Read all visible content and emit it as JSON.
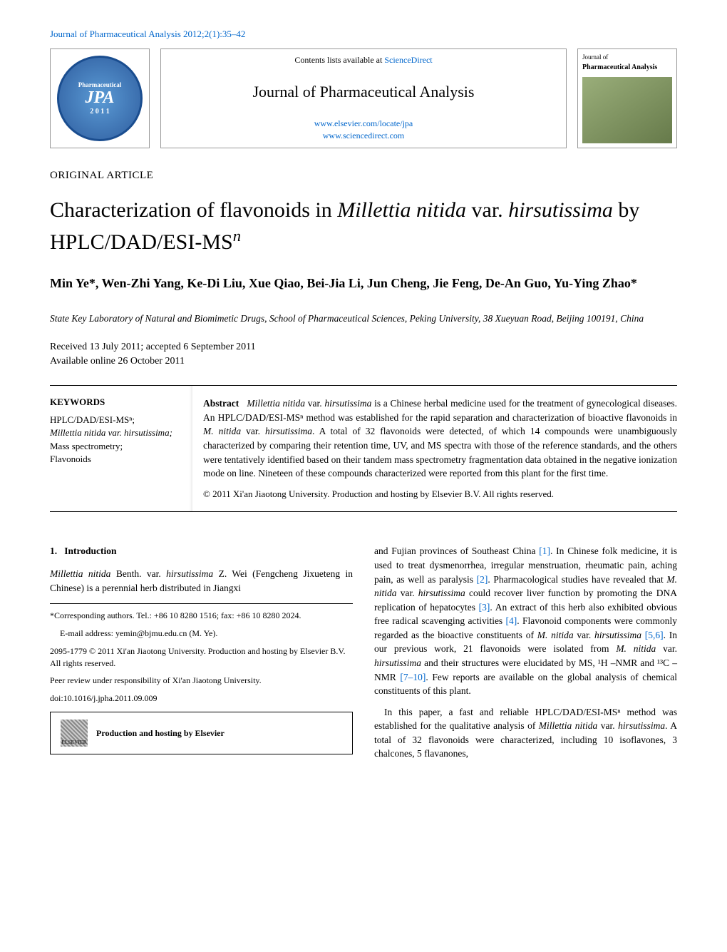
{
  "header": {
    "citation": "Journal of Pharmaceutical Analysis 2012;2(1):35–42"
  },
  "masthead": {
    "logo_text_top": "Pharmaceutical",
    "logo_text_center": "JPA",
    "logo_text_year": "2 0 1 1",
    "contents_prefix": "Contents lists available at ",
    "contents_link": "ScienceDirect",
    "journal_title": "Journal of Pharmaceutical Analysis",
    "link1": "www.elsevier.com/locate/jpa",
    "link2": "www.sciencedirect.com",
    "cover_line1": "Journal of",
    "cover_line2": "Pharmaceutical Analysis"
  },
  "article": {
    "type": "ORIGINAL ARTICLE",
    "title_part1": "Characterization of flavonoids in ",
    "title_italic1": "Millettia nitida",
    "title_part2": " var. ",
    "title_italic2": "hirsutissima",
    "title_part3": " by HPLC/DAD/ESI-MS",
    "title_sup": "n",
    "authors": "Min Ye*, Wen-Zhi Yang, Ke-Di Liu, Xue Qiao, Bei-Jia Li, Jun Cheng, Jie Feng, De-An Guo, Yu-Ying Zhao*",
    "affiliation": "State Key Laboratory of Natural and Biomimetic Drugs, School of Pharmaceutical Sciences, Peking University, 38 Xueyuan Road, Beijing 100191, China",
    "received": "Received 13 July 2011; accepted 6 September 2011",
    "available": "Available online 26 October 2011"
  },
  "keywords": {
    "heading": "KEYWORDS",
    "items": [
      "HPLC/DAD/ESI-MSⁿ;",
      "Millettia nitida var. hirsutissima;",
      "Mass spectrometry;",
      "Flavonoids"
    ]
  },
  "abstract": {
    "heading": "Abstract",
    "text_p1a": "Millettia nitida",
    "text_p1b": " var. ",
    "text_p1c": "hirsutissima",
    "text_p1d": " is a Chinese herbal medicine used for the treatment of gynecological diseases. An HPLC/DAD/ESI-MSⁿ method was established for the rapid separation and characterization of bioactive flavonoids in ",
    "text_p1e": "M. nitida",
    "text_p1f": " var. ",
    "text_p1g": "hirsutissima",
    "text_p1h": ". A total of 32 flavonoids were detected, of which 14 compounds were unambiguously characterized by comparing their retention time, UV, and MS spectra with those of the reference standards, and the others were tentatively identified based on their tandem mass spectrometry fragmentation data obtained in the negative ionization mode on line. Nineteen of these compounds characterized were reported from this plant for the first time.",
    "copyright": "© 2011 Xi'an Jiaotong University. Production and hosting by Elsevier B.V. All rights reserved."
  },
  "body": {
    "sec1_num": "1.",
    "sec1_title": "Introduction",
    "p1a": "Millettia nitida",
    "p1b": " Benth. var. ",
    "p1c": "hirsutissima",
    "p1d": " Z. Wei (Fengcheng Jixueteng in Chinese) is a perennial herb distributed in Jiangxi",
    "p2a": "and Fujian provinces of Southeast China ",
    "ref1": "[1]",
    "p2b": ". In Chinese folk medicine, it is used to treat dysmenorrhea, irregular menstruation, rheumatic pain, aching pain, as well as paralysis ",
    "ref2": "[2]",
    "p2c": ". Pharmacological studies have revealed that ",
    "p2d": "M. nitida",
    "p2e": " var. ",
    "p2f": "hirsutissima",
    "p2g": " could recover liver function by promoting the DNA replication of hepatocytes ",
    "ref3": "[3]",
    "p2h": ". An extract of this herb also exhibited obvious free radical scavenging activities ",
    "ref4": "[4]",
    "p2i": ". Flavonoid components were commonly regarded as the bioactive constituents of ",
    "p2j": "M. nitida",
    "p2k": " var. ",
    "p2l": "hirsutissima",
    "p2m": " ",
    "ref56": "[5,6]",
    "p2n": ". In our previous work, 21 flavonoids were isolated from ",
    "p2o": "M. nitida",
    "p2p": " var. ",
    "p2q": "hirsutissima",
    "p2r": " and their structures were elucidated by MS, ¹H –NMR and ¹³C –NMR ",
    "ref710": "[7–10]",
    "p2s": ". Few reports are available on the global analysis of chemical constituents of this plant.",
    "p3a": "In this paper, a fast and reliable HPLC/DAD/ESI-MSⁿ method was established for the qualitative analysis of ",
    "p3b": "Millettia nitida",
    "p3c": " var. ",
    "p3d": "hirsutissima",
    "p3e": ". A total of 32 flavonoids were characterized, including 10 isoflavones, 3 chalcones, 5 flavanones,"
  },
  "footnotes": {
    "corr": "*Corresponding authors. Tel.: +86 10 8280 1516; fax: +86 10 8280 2024.",
    "email_label": "E-mail address: ",
    "email": "yemin@bjmu.edu.cn (M. Ye).",
    "issn": "2095-1779 © 2011 Xi'an Jiaotong University. Production and hosting by Elsevier B.V. All rights reserved.",
    "peer": "Peer review under responsibility of Xi'an Jiaotong University.",
    "doi": "doi:10.1016/j.jpha.2011.09.009",
    "hosting": "Production and hosting by Elsevier",
    "elsevier_label": "ELSEVIER"
  }
}
